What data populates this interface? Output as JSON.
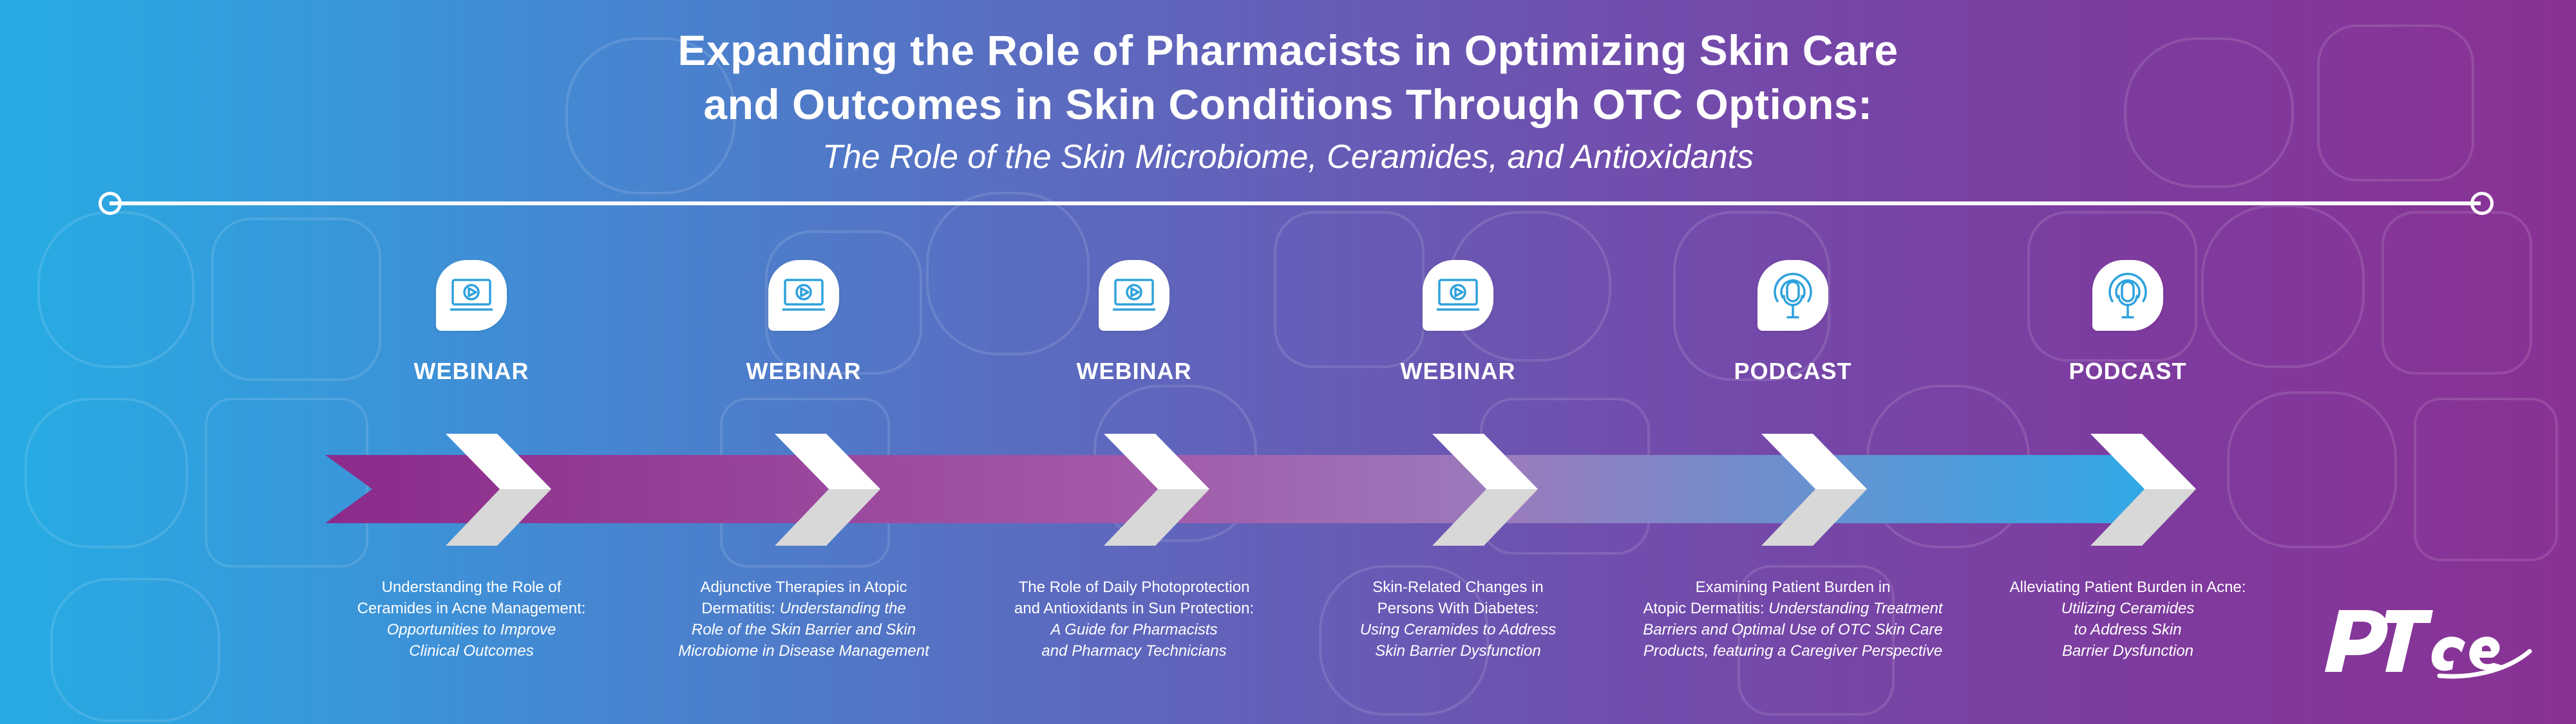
{
  "header": {
    "title_line1": "Expanding the Role of Pharmacists in Optimizing Skin Care",
    "title_line2": "and Outcomes in Skin Conditions Through OTC Options:",
    "subtitle": "The Role of the Skin Microbiome, Ceramides, and Antioxidants"
  },
  "colors": {
    "background_left": "#26ace3",
    "background_right": "#8a3194",
    "arrow_start": "#8b2a8a",
    "arrow_end": "#2fa9e6",
    "icon_blue": "#2fa2dc",
    "text": "#ffffff"
  },
  "items": [
    {
      "type": "WEBINAR",
      "icon": "video-icon",
      "line1": "Understanding the Role of",
      "line2": "Ceramides in Acne Management:",
      "line3": "Opportunities to Improve",
      "line4": "Clinical Outcomes"
    },
    {
      "type": "WEBINAR",
      "icon": "video-icon",
      "line1": "Adjunctive Therapies in Atopic",
      "line2a": "Dermatitis: ",
      "line2b": "Understanding the",
      "line3": "Role of the Skin Barrier and Skin",
      "line4": "Microbiome in Disease Management"
    },
    {
      "type": "WEBINAR",
      "icon": "video-icon",
      "line1": "The Role of Daily Photoprotection",
      "line2": "and Antioxidants in Sun Protection:",
      "line3": "A Guide for Pharmacists",
      "line4": "and Pharmacy Technicians"
    },
    {
      "type": "WEBINAR",
      "icon": "video-icon",
      "line1": "Skin-Related Changes in",
      "line2": "Persons With Diabetes:",
      "line3": "Using Ceramides to Address",
      "line4": "Skin Barrier Dysfunction"
    },
    {
      "type": "PODCAST",
      "icon": "podcast-microphone-icon",
      "line1": "Examining Patient Burden in",
      "line2a": "Atopic Dermatitis: ",
      "line2b": "Understanding Treatment",
      "line3": "Barriers and Optimal Use of OTC Skin Care",
      "line4": "Products, featuring a Caregiver Perspective"
    },
    {
      "type": "PODCAST",
      "icon": "podcast-microphone-icon",
      "line1": "Alleviating Patient Burden in Acne:",
      "line2": "Utilizing Ceramides",
      "line3": "to Address Skin",
      "line4": "Barrier Dysfunction"
    }
  ],
  "logo": {
    "text": "PTce"
  }
}
